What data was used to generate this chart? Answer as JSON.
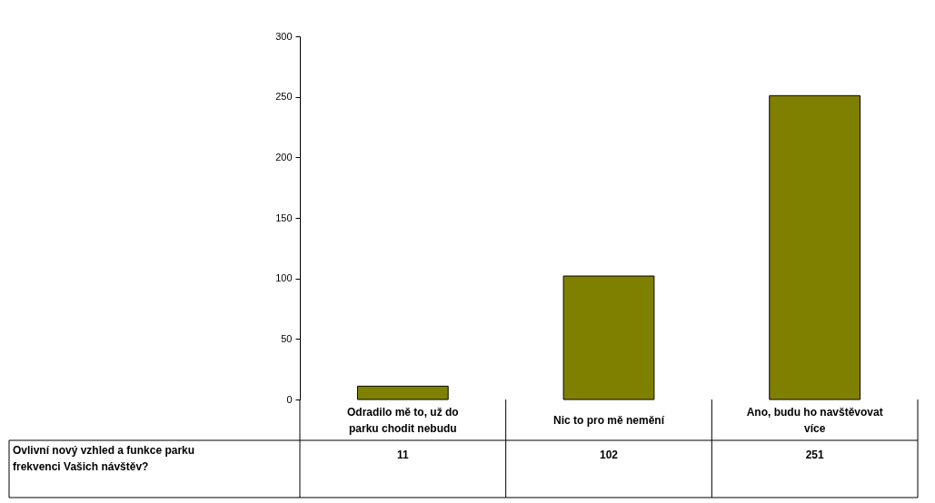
{
  "chart_data": {
    "type": "bar",
    "categories": [
      "Odradilo mě to, už do parku chodit nebudu",
      "Nic to pro mě nemění",
      "Ano, budu ho navštěvovat více"
    ],
    "series": [
      {
        "name": "Ovlivní nový vzhled a funkce parku frekvenci Vašich návštěv?",
        "color": "#808000",
        "values": [
          11,
          102,
          251
        ]
      }
    ],
    "ylim": [
      0,
      300
    ],
    "yticks": [
      0,
      50,
      100,
      150,
      200,
      250,
      300
    ],
    "grid": false,
    "data_labels": true
  }
}
